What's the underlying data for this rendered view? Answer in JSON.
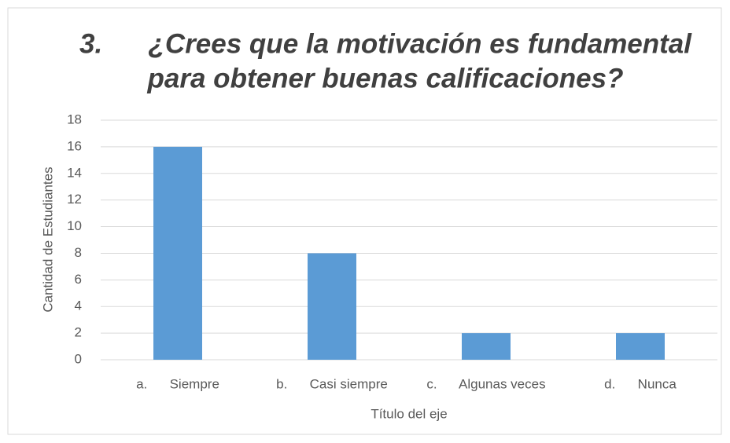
{
  "chart_data": {
    "type": "bar",
    "title": [
      "3.      ¿Crees que la motivación es fundamental",
      "para obtener buenas calificaciones?"
    ],
    "categories": [
      "a.      Siempre",
      "b.      Casi siempre",
      "c.      Algunas veces",
      "d.      Nunca"
    ],
    "values": [
      16,
      8,
      2,
      2
    ],
    "color": "#5b9bd5",
    "ylim": [
      0,
      18
    ],
    "yticks": [
      0,
      2,
      4,
      6,
      8,
      10,
      12,
      14,
      16,
      18
    ],
    "grid": true,
    "x_label": "Título del eje",
    "y_label": "Cantidad de Estudiantes"
  }
}
